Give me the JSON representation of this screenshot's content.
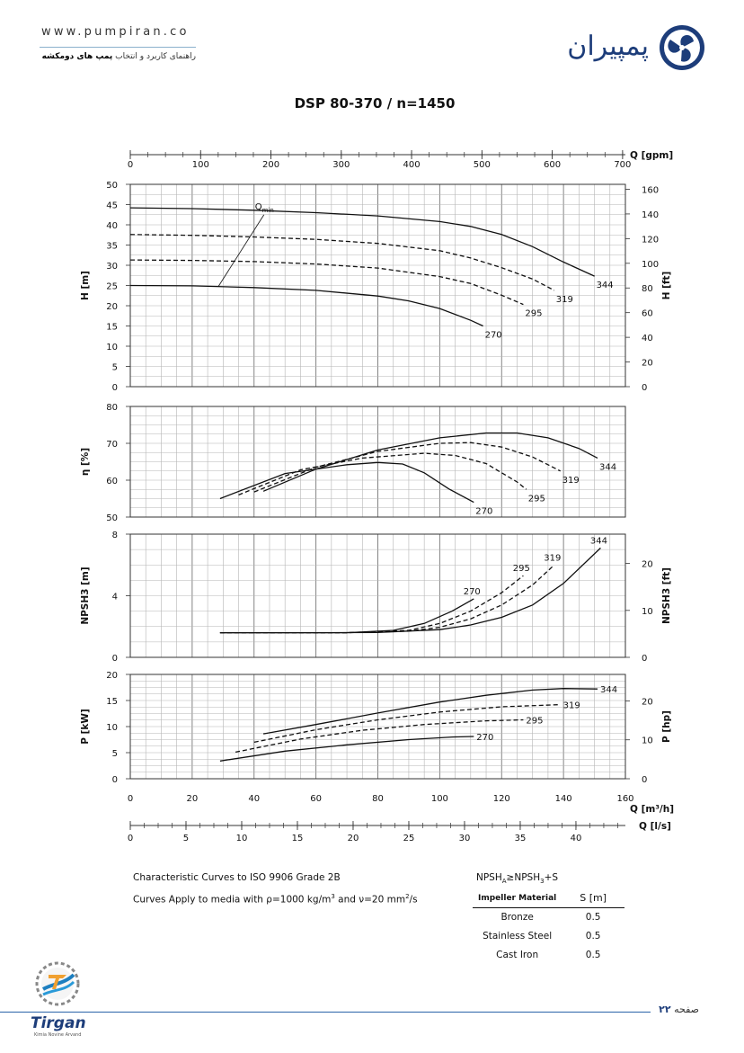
{
  "header": {
    "url": "www.pumpiran.co",
    "tagline_plain": "راهنمای کاربرد و انتخاب ",
    "tagline_bold": "پمپ های دومکشه",
    "brand": "پمپیران"
  },
  "footer": {
    "page_label": "صفحه ",
    "page_number": "۲۲",
    "logo_text": "Tirgan",
    "logo_sub": "Kimia Novine Arvand"
  },
  "notes": {
    "line1": "Characteristic Curves to ISO 9906 Grade 2B",
    "line2": "Curves Apply to media with  ρ=1000 kg/m³ and ν=20 mm²/s",
    "npsh_formula": "NPSHA≥NPSH3+S"
  },
  "impeller_table": {
    "headers": [
      "Impeller Material",
      "S [m]"
    ],
    "rows": [
      [
        "Bronze",
        "0.5"
      ],
      [
        "Stainless Steel",
        "0.5"
      ],
      [
        "Cast Iron",
        "0.5"
      ]
    ]
  },
  "colors": {
    "curve": "#111111",
    "grid": "#999999",
    "accent": "#1d3d7a"
  },
  "chart_data": {
    "type": "line",
    "title": "DSP 80-370 / n=1450",
    "series_labels": [
      "270",
      "295",
      "319",
      "344"
    ],
    "top_axis": {
      "label": "Q [gpm]",
      "ticks": [
        0,
        100,
        200,
        300,
        400,
        500,
        600,
        700
      ],
      "range": [
        0,
        704
      ]
    },
    "x_axis": {
      "label": "Q [m³/h]",
      "ticks": [
        0,
        20,
        40,
        60,
        80,
        100,
        120,
        140,
        160
      ],
      "range": [
        0,
        160
      ]
    },
    "lps_axis": {
      "label": "Q [l/s]",
      "ticks": [
        0,
        5,
        10,
        15,
        20,
        25,
        30,
        35,
        40
      ],
      "range": [
        0,
        44.44
      ]
    },
    "panels": {
      "head": {
        "ylabel": "H [m]",
        "ylim": [
          0,
          50
        ],
        "yticks": [
          0,
          5,
          10,
          15,
          20,
          25,
          30,
          35,
          40,
          45,
          50
        ],
        "y2label": "H [ft]",
        "y2lim": [
          0,
          164
        ],
        "y2ticks": [
          0,
          20,
          40,
          60,
          80,
          100,
          120,
          140,
          160
        ],
        "annotation": "Qmin",
        "qmin_line": [
          [
            28.5,
            24.8
          ],
          [
            43.2,
            42.5
          ]
        ],
        "curves": [
          {
            "name": "344",
            "style": "solid",
            "points": [
              [
                0,
                44.2
              ],
              [
                20,
                44
              ],
              [
                40,
                43.6
              ],
              [
                60,
                43
              ],
              [
                80,
                42.2
              ],
              [
                100,
                40.8
              ],
              [
                110,
                39.6
              ],
              [
                120,
                37.6
              ],
              [
                130,
                34.6
              ],
              [
                140,
                30.8
              ],
              [
                150,
                27.3
              ]
            ]
          },
          {
            "name": "319",
            "style": "dashed",
            "points": [
              [
                0,
                37.6
              ],
              [
                20,
                37.4
              ],
              [
                40,
                37
              ],
              [
                60,
                36.4
              ],
              [
                80,
                35.4
              ],
              [
                100,
                33.6
              ],
              [
                110,
                31.8
              ],
              [
                120,
                29.4
              ],
              [
                130,
                26.6
              ],
              [
                137,
                23.8
              ]
            ]
          },
          {
            "name": "295",
            "style": "dashed",
            "points": [
              [
                0,
                31.3
              ],
              [
                20,
                31.2
              ],
              [
                40,
                30.9
              ],
              [
                60,
                30.3
              ],
              [
                80,
                29.3
              ],
              [
                100,
                27.2
              ],
              [
                110,
                25.5
              ],
              [
                120,
                22.6
              ],
              [
                127,
                20.3
              ]
            ]
          },
          {
            "name": "270",
            "style": "solid",
            "points": [
              [
                0,
                25
              ],
              [
                20,
                24.9
              ],
              [
                40,
                24.5
              ],
              [
                60,
                23.8
              ],
              [
                80,
                22.4
              ],
              [
                90,
                21.2
              ],
              [
                100,
                19.3
              ],
              [
                110,
                16.4
              ],
              [
                114,
                15
              ]
            ]
          }
        ]
      },
      "efficiency": {
        "ylabel": "η [%]",
        "ylim": [
          50,
          80
        ],
        "yticks": [
          50,
          60,
          70,
          80
        ],
        "curves": [
          {
            "name": "344",
            "style": "solid",
            "points": [
              [
                43,
                57
              ],
              [
                60,
                63
              ],
              [
                80,
                68.2
              ],
              [
                100,
                71.5
              ],
              [
                115,
                72.8
              ],
              [
                125,
                72.8
              ],
              [
                135,
                71.5
              ],
              [
                145,
                68.6
              ],
              [
                151,
                66
              ]
            ]
          },
          {
            "name": "319",
            "style": "dashed",
            "points": [
              [
                40,
                56.8
              ],
              [
                60,
                63.5
              ],
              [
                80,
                67.8
              ],
              [
                100,
                70
              ],
              [
                110,
                70.2
              ],
              [
                120,
                69
              ],
              [
                130,
                66.3
              ],
              [
                139,
                62.5
              ]
            ]
          },
          {
            "name": "295",
            "style": "dashed",
            "points": [
              [
                35,
                56
              ],
              [
                55,
                62.8
              ],
              [
                75,
                66
              ],
              [
                95,
                67.3
              ],
              [
                105,
                66.7
              ],
              [
                115,
                64.5
              ],
              [
                125,
                59.5
              ],
              [
                128,
                57.5
              ]
            ]
          },
          {
            "name": "270",
            "style": "solid",
            "points": [
              [
                29,
                55
              ],
              [
                50,
                61.8
              ],
              [
                70,
                64.2
              ],
              [
                80,
                64.8
              ],
              [
                88,
                64.4
              ],
              [
                95,
                62
              ],
              [
                103,
                57.6
              ],
              [
                111,
                54
              ]
            ]
          }
        ]
      },
      "npsh": {
        "ylabel": "NPSH3 [m]",
        "ylim": [
          0,
          8
        ],
        "yticks": [
          0,
          4,
          8
        ],
        "y2label": "NPSH3 [ft]",
        "y2lim": [
          0,
          26.25
        ],
        "y2ticks": [
          0,
          10,
          20
        ],
        "curves": [
          {
            "name": "344",
            "style": "solid",
            "points": [
              [
                29,
                1.6
              ],
              [
                60,
                1.6
              ],
              [
                80,
                1.62
              ],
              [
                100,
                1.8
              ],
              [
                110,
                2.1
              ],
              [
                120,
                2.6
              ],
              [
                130,
                3.4
              ],
              [
                140,
                4.8
              ],
              [
                152,
                7.1
              ]
            ]
          },
          {
            "name": "319",
            "style": "dashed",
            "points": [
              [
                29,
                1.6
              ],
              [
                70,
                1.6
              ],
              [
                90,
                1.7
              ],
              [
                100,
                1.95
              ],
              [
                110,
                2.5
              ],
              [
                120,
                3.4
              ],
              [
                130,
                4.7
              ],
              [
                137,
                6
              ]
            ]
          },
          {
            "name": "295",
            "style": "dashed",
            "points": [
              [
                29,
                1.6
              ],
              [
                70,
                1.6
              ],
              [
                90,
                1.75
              ],
              [
                100,
                2.2
              ],
              [
                110,
                3
              ],
              [
                120,
                4.2
              ],
              [
                127,
                5.3
              ]
            ]
          },
          {
            "name": "270",
            "style": "solid",
            "points": [
              [
                29,
                1.6
              ],
              [
                70,
                1.6
              ],
              [
                85,
                1.75
              ],
              [
                95,
                2.2
              ],
              [
                104,
                3
              ],
              [
                111,
                3.8
              ]
            ]
          }
        ]
      },
      "power": {
        "ylabel": "P [kW]",
        "ylim": [
          0,
          20
        ],
        "yticks": [
          0,
          5,
          10,
          15,
          20
        ],
        "y2label": "P [hp]",
        "y2lim": [
          0,
          26.8
        ],
        "y2ticks": [
          0,
          10,
          20
        ],
        "curves": [
          {
            "name": "344",
            "style": "solid",
            "points": [
              [
                43,
                8.6
              ],
              [
                60,
                10.4
              ],
              [
                80,
                12.6
              ],
              [
                100,
                14.7
              ],
              [
                115,
                16
              ],
              [
                130,
                17
              ],
              [
                140,
                17.3
              ],
              [
                151,
                17.2
              ]
            ]
          },
          {
            "name": "319",
            "style": "dashed",
            "points": [
              [
                40,
                7
              ],
              [
                60,
                9.4
              ],
              [
                80,
                11.3
              ],
              [
                100,
                12.8
              ],
              [
                120,
                13.8
              ],
              [
                139,
                14.2
              ]
            ]
          },
          {
            "name": "295",
            "style": "dashed",
            "points": [
              [
                34,
                5.1
              ],
              [
                55,
                7.6
              ],
              [
                75,
                9.3
              ],
              [
                95,
                10.4
              ],
              [
                115,
                11.1
              ],
              [
                127,
                11.3
              ]
            ]
          },
          {
            "name": "270",
            "style": "solid",
            "points": [
              [
                29,
                3.4
              ],
              [
                50,
                5.3
              ],
              [
                70,
                6.5
              ],
              [
                90,
                7.5
              ],
              [
                104,
                8
              ],
              [
                111,
                8.1
              ]
            ]
          }
        ]
      }
    }
  }
}
